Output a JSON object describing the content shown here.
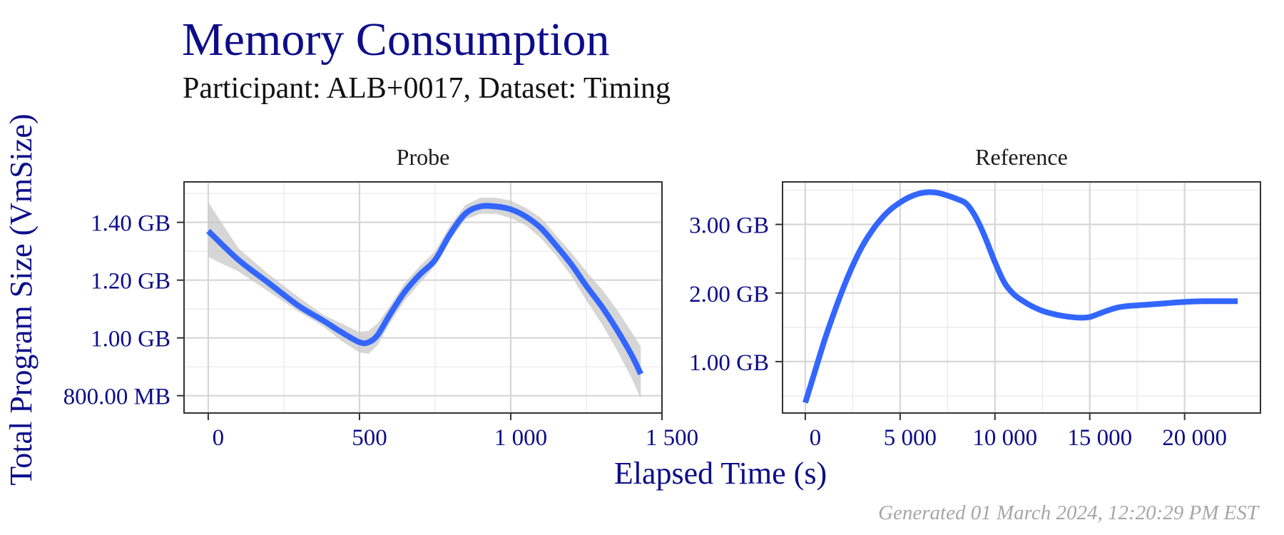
{
  "title": "Memory Consumption",
  "subtitle": "Participant: ALB+0017, Dataset: Timing",
  "caption": "Generated 01 March 2024, 12:20:29 PM EST",
  "colors": {
    "line": "#3366ff",
    "ribbon": "#c8c8c8",
    "axis_text": "#0d0d8a",
    "title": "#0d0d8a",
    "caption": "#a6a6a6"
  },
  "chart_data": {
    "type": "line",
    "xlabel": "Elapsed Time (s)",
    "ylabel": "Total Program Size (VmSize)",
    "grid": true,
    "legend": "none",
    "facets": [
      {
        "name": "Probe",
        "xlim": [
          -80,
          1500
        ],
        "ylim": [
          0.74,
          1.54
        ],
        "x_ticks": [
          0,
          500,
          1000,
          1500
        ],
        "x_tick_labels": [
          "0",
          "500",
          "1 000",
          "1 500"
        ],
        "y_ticks": [
          0.8,
          1.0,
          1.2,
          1.4
        ],
        "y_tick_labels": [
          "800.00 MB",
          "1.00 GB",
          "1.20 GB",
          "1.40 GB"
        ],
        "y_unit": "GB",
        "series": [
          {
            "x": [
              0,
              100,
              200,
              300,
              380,
              440,
              500,
              530,
              560,
              600,
              650,
              700,
              750,
              800,
              850,
              900,
              950,
              1000,
              1050,
              1100,
              1150,
              1200,
              1250,
              1300,
              1350,
              1400,
              1430
            ],
            "y": [
              1.37,
              1.27,
              1.19,
              1.11,
              1.06,
              1.02,
              0.985,
              0.985,
              1.01,
              1.08,
              1.16,
              1.22,
              1.27,
              1.36,
              1.43,
              1.455,
              1.455,
              1.445,
              1.42,
              1.38,
              1.32,
              1.255,
              1.18,
              1.11,
              1.03,
              0.94,
              0.875
            ],
            "lower": [
              1.28,
              1.23,
              1.16,
              1.09,
              1.04,
              0.99,
              0.95,
              0.945,
              0.975,
              1.05,
              1.13,
              1.19,
              1.25,
              1.34,
              1.41,
              1.43,
              1.43,
              1.415,
              1.39,
              1.345,
              1.285,
              1.215,
              1.13,
              1.05,
              0.96,
              0.86,
              0.79
            ],
            "upper": [
              1.47,
              1.31,
              1.22,
              1.14,
              1.08,
              1.05,
              1.02,
              1.025,
              1.05,
              1.11,
              1.19,
              1.25,
              1.3,
              1.39,
              1.46,
              1.485,
              1.485,
              1.475,
              1.45,
              1.415,
              1.355,
              1.295,
              1.23,
              1.17,
              1.1,
              1.02,
              0.97
            ]
          }
        ]
      },
      {
        "name": "Reference",
        "xlim": [
          -1200,
          24000
        ],
        "ylim": [
          0.25,
          3.62
        ],
        "x_ticks": [
          0,
          5000,
          10000,
          15000,
          20000
        ],
        "x_tick_labels": [
          "0",
          "5 000",
          "10 000",
          "15 000",
          "20 000"
        ],
        "y_ticks": [
          1.0,
          2.0,
          3.0
        ],
        "y_tick_labels": [
          "1.00 GB",
          "2.00 GB",
          "3.00 GB"
        ],
        "y_unit": "GB",
        "series": [
          {
            "x": [
              0,
              500,
              1000,
              1500,
              2000,
              2500,
              3000,
              3500,
              4000,
              4500,
              5000,
              5500,
              6000,
              6500,
              7000,
              7500,
              8000,
              8500,
              9000,
              9500,
              10000,
              10500,
              11000,
              11500,
              12000,
              12500,
              13000,
              13500,
              14000,
              14500,
              15000,
              15500,
              16000,
              16500,
              17000,
              17500,
              18000,
              19000,
              20000,
              21000,
              22000,
              22800
            ],
            "y": [
              0.4,
              0.85,
              1.3,
              1.7,
              2.07,
              2.4,
              2.68,
              2.9,
              3.08,
              3.22,
              3.32,
              3.4,
              3.45,
              3.47,
              3.46,
              3.42,
              3.37,
              3.3,
              3.1,
              2.8,
              2.45,
              2.15,
              1.98,
              1.88,
              1.8,
              1.74,
              1.7,
              1.67,
              1.65,
              1.64,
              1.65,
              1.7,
              1.75,
              1.79,
              1.81,
              1.82,
              1.83,
              1.85,
              1.87,
              1.88,
              1.88,
              1.88
            ]
          }
        ]
      }
    ]
  }
}
